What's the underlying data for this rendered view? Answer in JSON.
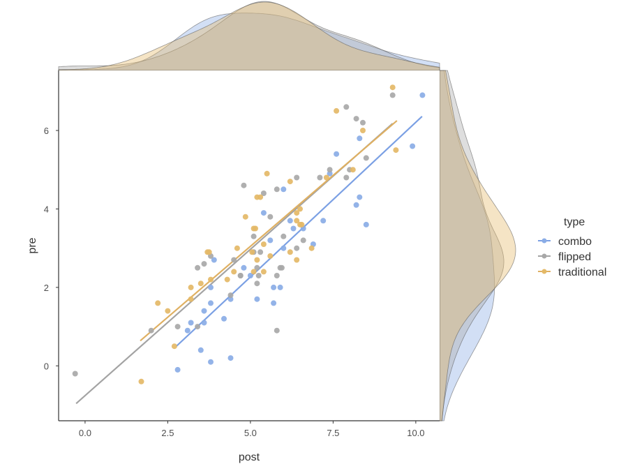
{
  "chart_data": {
    "type": "scatter",
    "title": "",
    "xlabel": "post",
    "ylabel": "pre",
    "xlim": [
      -0.8,
      10.72
    ],
    "ylim": [
      -1.4,
      7.53
    ],
    "xticks": [
      0,
      2.5,
      5,
      7.5,
      10
    ],
    "xtick_labels": [
      "0.0",
      "2.5",
      "5.0",
      "7.5",
      "10.0"
    ],
    "yticks": [
      0,
      2,
      4,
      6
    ],
    "ytick_labels": [
      "0",
      "2",
      "4",
      "6"
    ],
    "grid": false,
    "legend": {
      "title": "type",
      "placement": "right"
    },
    "marginal": "density",
    "series": [
      {
        "name": "combo",
        "color": "#8AACE6",
        "line_color": "#7BA0E4",
        "fit": [
          [
            2.76,
            0.5
          ],
          [
            10.19,
            6.36
          ]
        ],
        "points": [
          [
            10.2,
            6.9
          ],
          [
            9.9,
            5.6
          ],
          [
            8.3,
            5.8
          ],
          [
            7.6,
            5.4
          ],
          [
            7.4,
            4.9
          ],
          [
            8.3,
            4.3
          ],
          [
            8.2,
            4.1
          ],
          [
            8.5,
            3.6
          ],
          [
            7.2,
            3.7
          ],
          [
            6.9,
            3.1
          ],
          [
            6.6,
            3.5
          ],
          [
            6.3,
            3.5
          ],
          [
            6.2,
            3.7
          ],
          [
            6.0,
            4.5
          ],
          [
            6.0,
            3.0
          ],
          [
            5.4,
            3.9
          ],
          [
            5.6,
            3.2
          ],
          [
            5.7,
            2.0
          ],
          [
            5.9,
            2.0
          ],
          [
            5.7,
            1.6
          ],
          [
            5.2,
            1.7
          ],
          [
            5.0,
            2.3
          ],
          [
            4.8,
            2.5
          ],
          [
            4.4,
            1.7
          ],
          [
            4.2,
            1.2
          ],
          [
            4.4,
            0.2
          ],
          [
            3.8,
            0.1
          ],
          [
            3.5,
            0.4
          ],
          [
            3.1,
            0.9
          ],
          [
            3.2,
            1.1
          ],
          [
            3.6,
            1.1
          ],
          [
            3.6,
            1.4
          ],
          [
            3.8,
            1.6
          ],
          [
            3.8,
            2.0
          ],
          [
            3.9,
            2.7
          ],
          [
            2.8,
            -0.1
          ]
        ]
      },
      {
        "name": "flipped",
        "color": "#A8A8A8",
        "line_color": "#A3A3A3",
        "fit": [
          [
            -0.27,
            -0.96
          ],
          [
            9.3,
            6.18
          ]
        ],
        "points": [
          [
            9.3,
            6.9
          ],
          [
            7.9,
            6.6
          ],
          [
            8.2,
            6.3
          ],
          [
            8.4,
            6.2
          ],
          [
            8.5,
            5.3
          ],
          [
            8.0,
            5.0
          ],
          [
            7.4,
            5.0
          ],
          [
            7.9,
            4.8
          ],
          [
            7.1,
            4.8
          ],
          [
            6.4,
            4.8
          ],
          [
            4.8,
            4.6
          ],
          [
            5.4,
            4.4
          ],
          [
            5.8,
            4.5
          ],
          [
            5.6,
            3.8
          ],
          [
            5.1,
            3.3
          ],
          [
            6.0,
            3.3
          ],
          [
            6.6,
            3.2
          ],
          [
            6.4,
            3.0
          ],
          [
            5.3,
            2.9
          ],
          [
            5.1,
            2.9
          ],
          [
            5.2,
            2.5
          ],
          [
            5.9,
            2.5
          ],
          [
            5.95,
            2.5
          ],
          [
            4.7,
            2.3
          ],
          [
            5.25,
            2.3
          ],
          [
            5.8,
            2.3
          ],
          [
            5.2,
            2.1
          ],
          [
            5.8,
            0.9
          ],
          [
            3.8,
            2.8
          ],
          [
            4.5,
            2.7
          ],
          [
            3.6,
            2.6
          ],
          [
            3.4,
            2.5
          ],
          [
            4.7,
            2.3
          ],
          [
            4.4,
            1.8
          ],
          [
            2.8,
            1.0
          ],
          [
            3.4,
            1.0
          ],
          [
            2.0,
            0.9
          ],
          [
            -0.3,
            -0.2
          ]
        ]
      },
      {
        "name": "traditional",
        "color": "#E4B967",
        "line_color": "#DFB062",
        "fit": [
          [
            1.67,
            0.64
          ],
          [
            9.43,
            6.25
          ]
        ],
        "points": [
          [
            9.3,
            7.1
          ],
          [
            7.6,
            6.5
          ],
          [
            8.4,
            6.0
          ],
          [
            9.4,
            5.5
          ],
          [
            8.1,
            5.0
          ],
          [
            7.3,
            4.8
          ],
          [
            6.2,
            4.7
          ],
          [
            5.5,
            4.9
          ],
          [
            5.2,
            4.3
          ],
          [
            5.3,
            4.3
          ],
          [
            4.85,
            3.8
          ],
          [
            6.5,
            4.0
          ],
          [
            6.4,
            3.9
          ],
          [
            5.15,
            3.5
          ],
          [
            5.1,
            3.5
          ],
          [
            6.4,
            3.7
          ],
          [
            6.5,
            3.6
          ],
          [
            6.55,
            3.6
          ],
          [
            5.4,
            3.1
          ],
          [
            6.85,
            3.0
          ],
          [
            6.2,
            2.9
          ],
          [
            4.6,
            3.0
          ],
          [
            3.7,
            2.9
          ],
          [
            3.75,
            2.9
          ],
          [
            5.05,
            2.9
          ],
          [
            5.2,
            2.7
          ],
          [
            5.6,
            2.8
          ],
          [
            6.4,
            2.7
          ],
          [
            5.1,
            2.4
          ],
          [
            5.4,
            2.4
          ],
          [
            4.5,
            2.4
          ],
          [
            4.3,
            2.2
          ],
          [
            3.8,
            2.2
          ],
          [
            3.5,
            2.1
          ],
          [
            3.2,
            2.0
          ],
          [
            3.2,
            1.7
          ],
          [
            2.2,
            1.6
          ],
          [
            2.5,
            1.4
          ],
          [
            2.7,
            0.5
          ],
          [
            1.7,
            -0.4
          ]
        ]
      }
    ]
  }
}
